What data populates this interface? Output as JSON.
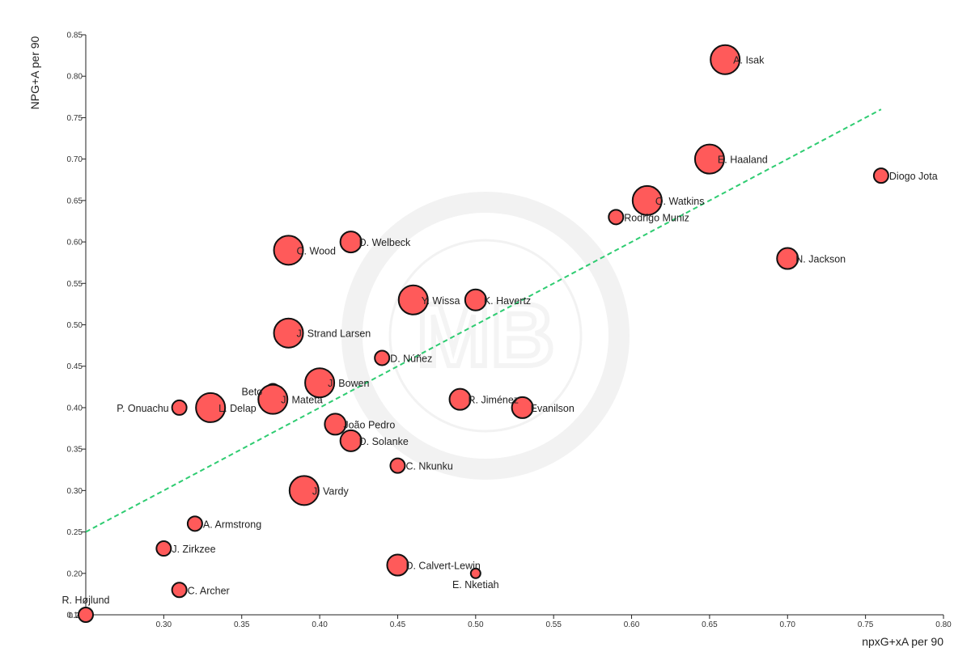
{
  "chart_data": {
    "type": "scatter",
    "xlabel": "npxG+xA per 90",
    "ylabel": "NPG+A per 90",
    "xlim": [
      0.25,
      0.8
    ],
    "ylim": [
      0.15,
      0.85
    ],
    "x_ticks": [
      "0.30",
      "0.35",
      "0.40",
      "0.45",
      "0.50",
      "0.55",
      "0.60",
      "0.65",
      "0.70",
      "0.75",
      "0.80"
    ],
    "y_ticks": [
      "0.15",
      "0.20",
      "0.25",
      "0.30",
      "0.35",
      "0.40",
      "0.45",
      "0.50",
      "0.55",
      "0.60",
      "0.65",
      "0.70",
      "0.75",
      "0.80",
      "0.85"
    ],
    "x_origin_label": "0.25",
    "trendline": {
      "x": [
        0.25,
        0.76
      ],
      "y": [
        0.25,
        0.76
      ],
      "style": "dashed",
      "color": "#2ecc71"
    },
    "point_color": "#ff5a5a",
    "watermark": "MB",
    "points": [
      {
        "name": "A. Isak",
        "x": 0.66,
        "y": 0.82,
        "size": "large",
        "label_pos": "right"
      },
      {
        "name": "E. Haaland",
        "x": 0.65,
        "y": 0.7,
        "size": "large",
        "label_pos": "right"
      },
      {
        "name": "Diogo Jota",
        "x": 0.76,
        "y": 0.68,
        "size": "small",
        "label_pos": "right"
      },
      {
        "name": "O. Watkins",
        "x": 0.61,
        "y": 0.65,
        "size": "large",
        "label_pos": "right"
      },
      {
        "name": "Rodrigo Muniz",
        "x": 0.59,
        "y": 0.63,
        "size": "small",
        "label_pos": "right"
      },
      {
        "name": "N. Jackson",
        "x": 0.7,
        "y": 0.58,
        "size": "medium",
        "label_pos": "right"
      },
      {
        "name": "D. Welbeck",
        "x": 0.42,
        "y": 0.6,
        "size": "medium",
        "label_pos": "right"
      },
      {
        "name": "C. Wood",
        "x": 0.38,
        "y": 0.59,
        "size": "large",
        "label_pos": "right"
      },
      {
        "name": "Y. Wissa",
        "x": 0.46,
        "y": 0.53,
        "size": "large",
        "label_pos": "right"
      },
      {
        "name": "K. Havertz",
        "x": 0.5,
        "y": 0.53,
        "size": "medium",
        "label_pos": "right"
      },
      {
        "name": "J. Strand Larsen",
        "x": 0.38,
        "y": 0.49,
        "size": "large",
        "label_pos": "right"
      },
      {
        "name": "D. Núñez",
        "x": 0.44,
        "y": 0.46,
        "size": "small",
        "label_pos": "right"
      },
      {
        "name": "J. Bowen",
        "x": 0.4,
        "y": 0.43,
        "size": "large",
        "label_pos": "right"
      },
      {
        "name": "Beto",
        "x": 0.37,
        "y": 0.42,
        "size": "small",
        "label_pos": "left"
      },
      {
        "name": "J. Mateta",
        "x": 0.37,
        "y": 0.41,
        "size": "large",
        "label_pos": "right"
      },
      {
        "name": "R. Jiménez",
        "x": 0.49,
        "y": 0.41,
        "size": "medium",
        "label_pos": "right"
      },
      {
        "name": "Evanilson",
        "x": 0.53,
        "y": 0.4,
        "size": "medium",
        "label_pos": "right"
      },
      {
        "name": "P. Onuachu",
        "x": 0.31,
        "y": 0.4,
        "size": "small",
        "label_pos": "left"
      },
      {
        "name": "L. Delap",
        "x": 0.33,
        "y": 0.4,
        "size": "large",
        "label_pos": "right"
      },
      {
        "name": "João Pedro",
        "x": 0.41,
        "y": 0.38,
        "size": "medium",
        "label_pos": "right"
      },
      {
        "name": "D. Solanke",
        "x": 0.42,
        "y": 0.36,
        "size": "medium",
        "label_pos": "right"
      },
      {
        "name": "C. Nkunku",
        "x": 0.45,
        "y": 0.33,
        "size": "small",
        "label_pos": "right"
      },
      {
        "name": "J. Vardy",
        "x": 0.39,
        "y": 0.3,
        "size": "large",
        "label_pos": "right"
      },
      {
        "name": "A. Armstrong",
        "x": 0.32,
        "y": 0.26,
        "size": "small",
        "label_pos": "right"
      },
      {
        "name": "J. Zirkzee",
        "x": 0.3,
        "y": 0.23,
        "size": "small",
        "label_pos": "right"
      },
      {
        "name": "D. Calvert-Lewin",
        "x": 0.45,
        "y": 0.21,
        "size": "medium",
        "label_pos": "right"
      },
      {
        "name": "E. Nketiah",
        "x": 0.5,
        "y": 0.2,
        "size": "tiny",
        "label_pos": "below"
      },
      {
        "name": "C. Archer",
        "x": 0.31,
        "y": 0.18,
        "size": "small",
        "label_pos": "right"
      },
      {
        "name": "R. Højlund",
        "x": 0.25,
        "y": 0.15,
        "size": "small",
        "label_pos": "above"
      }
    ]
  }
}
